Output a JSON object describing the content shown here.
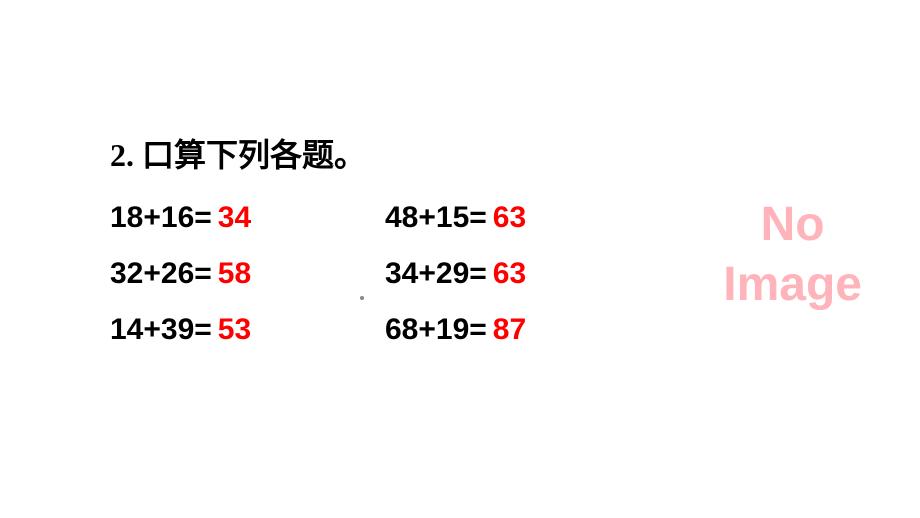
{
  "title": "2. 口算下列各题。",
  "problems": [
    {
      "expression": "18+16=",
      "answer": "34"
    },
    {
      "expression": "48+15=",
      "answer": "63"
    },
    {
      "expression": "32+26=",
      "answer": "58"
    },
    {
      "expression": "34+29=",
      "answer": "63"
    },
    {
      "expression": "14+39=",
      "answer": "53"
    },
    {
      "expression": "68+19=",
      "answer": "87"
    }
  ],
  "placeholder": {
    "line1": "No",
    "line2": "Image"
  },
  "styling": {
    "title_color": "#000000",
    "expression_color": "#000000",
    "answer_color": "#ff0000",
    "placeholder_color": "#ffb3ba",
    "background_color": "#ffffff",
    "title_fontsize": 32,
    "problem_fontsize": 30,
    "placeholder_fontsize": 48
  }
}
